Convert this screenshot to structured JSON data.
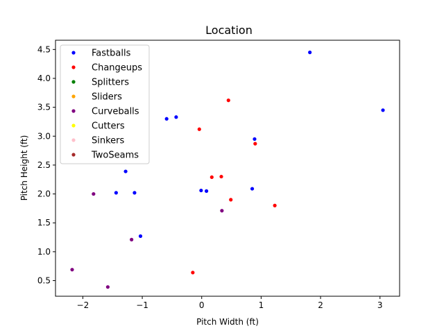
{
  "chart_data": {
    "type": "scatter",
    "title": "Location",
    "xlabel": "Pitch Width (ft)",
    "ylabel": "Pitch Height (ft)",
    "xlim": [
      -2.46,
      3.33
    ],
    "ylim": [
      0.23,
      4.66
    ],
    "x_ticks": [
      -2,
      -1,
      0,
      1,
      2,
      3
    ],
    "x_tick_labels": [
      "−2",
      "−1",
      "0",
      "1",
      "2",
      "3"
    ],
    "y_ticks": [
      0.5,
      1.0,
      1.5,
      2.0,
      2.5,
      3.0,
      3.5,
      4.0,
      4.5
    ],
    "y_tick_labels": [
      "0.5",
      "1.0",
      "1.5",
      "2.0",
      "2.5",
      "3.0",
      "3.5",
      "4.0",
      "4.5"
    ],
    "grid": false,
    "legend_position": "top-left",
    "series": [
      {
        "name": "Fastballs",
        "color": "#0000ff",
        "x": [
          1.82,
          3.05,
          -0.43,
          -0.59,
          0.89,
          -1.28,
          -1.44,
          -1.13,
          -0.01,
          0.08,
          0.85,
          -1.03
        ],
        "y": [
          4.45,
          3.45,
          3.33,
          3.3,
          2.95,
          2.39,
          2.02,
          2.02,
          2.06,
          2.05,
          2.09,
          1.27
        ]
      },
      {
        "name": "Changeups",
        "color": "#ff0000",
        "x": [
          0.45,
          -0.04,
          0.9,
          0.17,
          0.33,
          0.49,
          1.23,
          -0.15
        ],
        "y": [
          3.62,
          3.12,
          2.87,
          2.29,
          2.3,
          1.9,
          1.8,
          0.64
        ]
      },
      {
        "name": "Splitters",
        "color": "#008000",
        "x": [],
        "y": []
      },
      {
        "name": "Sliders",
        "color": "#ffa500",
        "x": [],
        "y": []
      },
      {
        "name": "Curveballs",
        "color": "#800080",
        "x": [
          -1.82,
          0.34,
          -1.18,
          -2.18,
          -1.58
        ],
        "y": [
          2.0,
          1.71,
          1.21,
          0.69,
          0.39
        ]
      },
      {
        "name": "Cutters",
        "color": "#ffff00",
        "x": [],
        "y": []
      },
      {
        "name": "Sinkers",
        "color": "#ffc0cb",
        "x": [],
        "y": []
      },
      {
        "name": "TwoSeams",
        "color": "#a52a2a",
        "x": [],
        "y": []
      }
    ]
  }
}
